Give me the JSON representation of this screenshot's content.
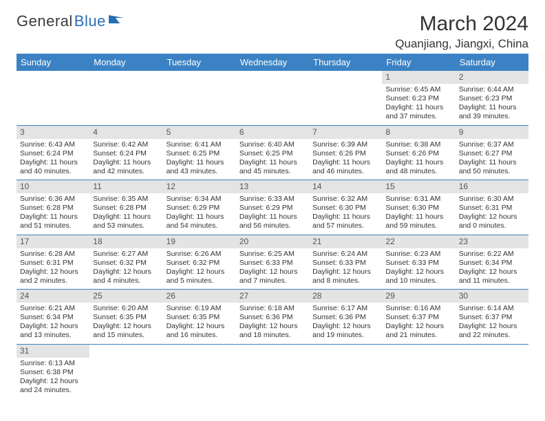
{
  "logo": {
    "part1": "General",
    "part2": "Blue"
  },
  "title": "March 2024",
  "location": "Quanjiang, Jiangxi, China",
  "colors": {
    "header_bg": "#3b82c4",
    "header_text": "#ffffff",
    "daynum_bg": "#e4e4e4",
    "cell_border": "#3b82c4",
    "logo_blue": "#2a6fb5",
    "logo_gray": "#3a3a3a",
    "body_text": "#333333",
    "page_bg": "#ffffff"
  },
  "typography": {
    "title_fontsize": 30,
    "location_fontsize": 17,
    "dayheader_fontsize": 13,
    "daynum_fontsize": 12,
    "cell_fontsize": 10.5
  },
  "dayHeaders": [
    "Sunday",
    "Monday",
    "Tuesday",
    "Wednesday",
    "Thursday",
    "Friday",
    "Saturday"
  ],
  "weeks": [
    [
      null,
      null,
      null,
      null,
      null,
      {
        "num": "1",
        "sunrise": "Sunrise: 6:45 AM",
        "sunset": "Sunset: 6:23 PM",
        "daylight": "Daylight: 11 hours and 37 minutes."
      },
      {
        "num": "2",
        "sunrise": "Sunrise: 6:44 AM",
        "sunset": "Sunset: 6:23 PM",
        "daylight": "Daylight: 11 hours and 39 minutes."
      }
    ],
    [
      {
        "num": "3",
        "sunrise": "Sunrise: 6:43 AM",
        "sunset": "Sunset: 6:24 PM",
        "daylight": "Daylight: 11 hours and 40 minutes."
      },
      {
        "num": "4",
        "sunrise": "Sunrise: 6:42 AM",
        "sunset": "Sunset: 6:24 PM",
        "daylight": "Daylight: 11 hours and 42 minutes."
      },
      {
        "num": "5",
        "sunrise": "Sunrise: 6:41 AM",
        "sunset": "Sunset: 6:25 PM",
        "daylight": "Daylight: 11 hours and 43 minutes."
      },
      {
        "num": "6",
        "sunrise": "Sunrise: 6:40 AM",
        "sunset": "Sunset: 6:25 PM",
        "daylight": "Daylight: 11 hours and 45 minutes."
      },
      {
        "num": "7",
        "sunrise": "Sunrise: 6:39 AM",
        "sunset": "Sunset: 6:26 PM",
        "daylight": "Daylight: 11 hours and 46 minutes."
      },
      {
        "num": "8",
        "sunrise": "Sunrise: 6:38 AM",
        "sunset": "Sunset: 6:26 PM",
        "daylight": "Daylight: 11 hours and 48 minutes."
      },
      {
        "num": "9",
        "sunrise": "Sunrise: 6:37 AM",
        "sunset": "Sunset: 6:27 PM",
        "daylight": "Daylight: 11 hours and 50 minutes."
      }
    ],
    [
      {
        "num": "10",
        "sunrise": "Sunrise: 6:36 AM",
        "sunset": "Sunset: 6:28 PM",
        "daylight": "Daylight: 11 hours and 51 minutes."
      },
      {
        "num": "11",
        "sunrise": "Sunrise: 6:35 AM",
        "sunset": "Sunset: 6:28 PM",
        "daylight": "Daylight: 11 hours and 53 minutes."
      },
      {
        "num": "12",
        "sunrise": "Sunrise: 6:34 AM",
        "sunset": "Sunset: 6:29 PM",
        "daylight": "Daylight: 11 hours and 54 minutes."
      },
      {
        "num": "13",
        "sunrise": "Sunrise: 6:33 AM",
        "sunset": "Sunset: 6:29 PM",
        "daylight": "Daylight: 11 hours and 56 minutes."
      },
      {
        "num": "14",
        "sunrise": "Sunrise: 6:32 AM",
        "sunset": "Sunset: 6:30 PM",
        "daylight": "Daylight: 11 hours and 57 minutes."
      },
      {
        "num": "15",
        "sunrise": "Sunrise: 6:31 AM",
        "sunset": "Sunset: 6:30 PM",
        "daylight": "Daylight: 11 hours and 59 minutes."
      },
      {
        "num": "16",
        "sunrise": "Sunrise: 6:30 AM",
        "sunset": "Sunset: 6:31 PM",
        "daylight": "Daylight: 12 hours and 0 minutes."
      }
    ],
    [
      {
        "num": "17",
        "sunrise": "Sunrise: 6:28 AM",
        "sunset": "Sunset: 6:31 PM",
        "daylight": "Daylight: 12 hours and 2 minutes."
      },
      {
        "num": "18",
        "sunrise": "Sunrise: 6:27 AM",
        "sunset": "Sunset: 6:32 PM",
        "daylight": "Daylight: 12 hours and 4 minutes."
      },
      {
        "num": "19",
        "sunrise": "Sunrise: 6:26 AM",
        "sunset": "Sunset: 6:32 PM",
        "daylight": "Daylight: 12 hours and 5 minutes."
      },
      {
        "num": "20",
        "sunrise": "Sunrise: 6:25 AM",
        "sunset": "Sunset: 6:33 PM",
        "daylight": "Daylight: 12 hours and 7 minutes."
      },
      {
        "num": "21",
        "sunrise": "Sunrise: 6:24 AM",
        "sunset": "Sunset: 6:33 PM",
        "daylight": "Daylight: 12 hours and 8 minutes."
      },
      {
        "num": "22",
        "sunrise": "Sunrise: 6:23 AM",
        "sunset": "Sunset: 6:33 PM",
        "daylight": "Daylight: 12 hours and 10 minutes."
      },
      {
        "num": "23",
        "sunrise": "Sunrise: 6:22 AM",
        "sunset": "Sunset: 6:34 PM",
        "daylight": "Daylight: 12 hours and 11 minutes."
      }
    ],
    [
      {
        "num": "24",
        "sunrise": "Sunrise: 6:21 AM",
        "sunset": "Sunset: 6:34 PM",
        "daylight": "Daylight: 12 hours and 13 minutes."
      },
      {
        "num": "25",
        "sunrise": "Sunrise: 6:20 AM",
        "sunset": "Sunset: 6:35 PM",
        "daylight": "Daylight: 12 hours and 15 minutes."
      },
      {
        "num": "26",
        "sunrise": "Sunrise: 6:19 AM",
        "sunset": "Sunset: 6:35 PM",
        "daylight": "Daylight: 12 hours and 16 minutes."
      },
      {
        "num": "27",
        "sunrise": "Sunrise: 6:18 AM",
        "sunset": "Sunset: 6:36 PM",
        "daylight": "Daylight: 12 hours and 18 minutes."
      },
      {
        "num": "28",
        "sunrise": "Sunrise: 6:17 AM",
        "sunset": "Sunset: 6:36 PM",
        "daylight": "Daylight: 12 hours and 19 minutes."
      },
      {
        "num": "29",
        "sunrise": "Sunrise: 6:16 AM",
        "sunset": "Sunset: 6:37 PM",
        "daylight": "Daylight: 12 hours and 21 minutes."
      },
      {
        "num": "30",
        "sunrise": "Sunrise: 6:14 AM",
        "sunset": "Sunset: 6:37 PM",
        "daylight": "Daylight: 12 hours and 22 minutes."
      }
    ],
    [
      {
        "num": "31",
        "sunrise": "Sunrise: 6:13 AM",
        "sunset": "Sunset: 6:38 PM",
        "daylight": "Daylight: 12 hours and 24 minutes."
      },
      null,
      null,
      null,
      null,
      null,
      null
    ]
  ]
}
